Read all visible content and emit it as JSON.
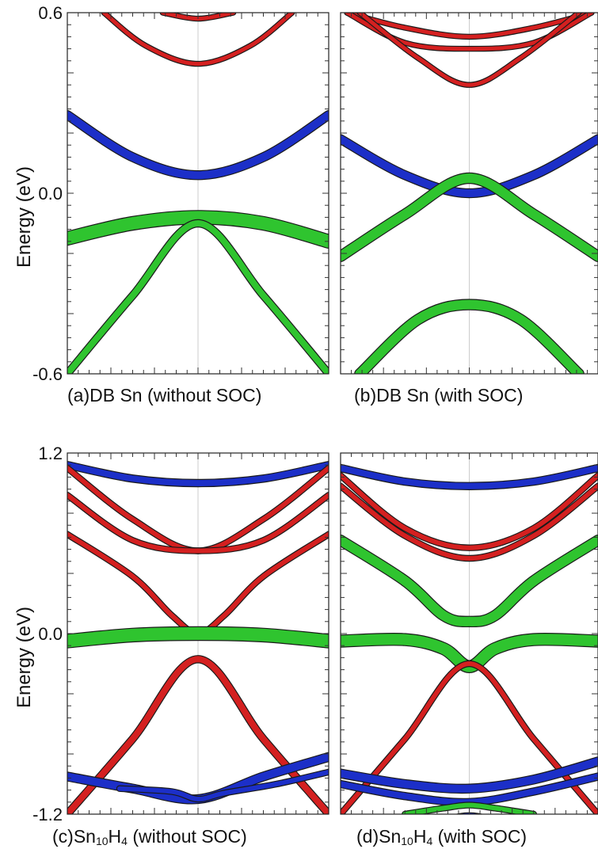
{
  "figure": {
    "panel_captions": [
      {
        "prefix": "(a)DB Sn ",
        "suffix": "(without SOC)"
      },
      {
        "prefix": "(b)DB Sn ",
        "suffix": "(with SOC)"
      },
      {
        "prefix": "(c)Sn",
        "sub1": "10",
        "mid": "H",
        "sub2": "4",
        "suffix": " (without SOC)"
      },
      {
        "prefix": "(d)Sn",
        "sub1": "10",
        "mid": "H",
        "sub2": "4",
        "suffix": " (with SOC)"
      }
    ]
  },
  "colors": {
    "red": "#d42020",
    "blue": "#1c2fc8",
    "green": "#2fc42f",
    "outline": "#1a1a1a"
  },
  "chart_data": [
    {
      "type": "line",
      "caption": "(a)DB Sn (without SOC)",
      "ylabel": "Energy (eV)",
      "xlim": [
        -1,
        1
      ],
      "ylim": [
        -0.6,
        0.6
      ],
      "yticks": [
        "0.6",
        "0.0",
        "-0.6"
      ],
      "ytick_values": [
        0.6,
        0.0,
        -0.6
      ],
      "series": [
        {
          "color": "red",
          "width": 5,
          "x": [
            -0.27,
            0,
            0.27
          ],
          "y": [
            0.6,
            0.58,
            0.6
          ]
        },
        {
          "color": "red",
          "width": 5,
          "x": [
            -0.72,
            -0.4,
            0,
            0.4,
            0.72
          ],
          "y": [
            0.6,
            0.49,
            0.43,
            0.49,
            0.6
          ]
        },
        {
          "color": "blue",
          "width": 10,
          "x": [
            -1,
            -0.5,
            0,
            0.5,
            1
          ],
          "y": [
            0.26,
            0.12,
            0.06,
            0.12,
            0.26
          ]
        },
        {
          "color": "green",
          "width": 16,
          "x": [
            -1,
            -0.5,
            0,
            0.5,
            1
          ],
          "y": [
            -0.15,
            -0.1,
            -0.08,
            -0.1,
            -0.16
          ]
        },
        {
          "color": "green",
          "width": 8,
          "x": [
            -1,
            -0.5,
            0,
            0.5,
            1
          ],
          "y": [
            -0.6,
            -0.34,
            -0.1,
            -0.34,
            -0.6
          ]
        }
      ]
    },
    {
      "type": "line",
      "caption": "(b)DB Sn (with SOC)",
      "xlim": [
        -1,
        1
      ],
      "ylim": [
        -0.6,
        0.6
      ],
      "series": [
        {
          "color": "red",
          "width": 5,
          "x": [
            -0.95,
            -0.5,
            0,
            0.5,
            0.95
          ],
          "y": [
            0.6,
            0.55,
            0.52,
            0.55,
            0.6
          ]
        },
        {
          "color": "red",
          "width": 5,
          "x": [
            -0.95,
            -0.5,
            0,
            0.5,
            0.95
          ],
          "y": [
            0.6,
            0.5,
            0.48,
            0.5,
            0.6
          ]
        },
        {
          "color": "red",
          "width": 5,
          "x": [
            -0.85,
            -0.4,
            0,
            0.4,
            0.85
          ],
          "y": [
            0.6,
            0.45,
            0.36,
            0.45,
            0.6
          ]
        },
        {
          "color": "blue",
          "width": 10,
          "x": [
            -1,
            -0.5,
            0,
            0.5,
            1
          ],
          "y": [
            0.18,
            0.06,
            0.0,
            0.06,
            0.18
          ]
        },
        {
          "color": "green",
          "width": 12,
          "x": [
            -1,
            -0.5,
            0,
            0.5,
            1
          ],
          "y": [
            -0.21,
            -0.07,
            0.05,
            -0.07,
            -0.21
          ]
        },
        {
          "color": "green",
          "width": 12,
          "x": [
            -0.85,
            -0.4,
            0,
            0.4,
            0.85
          ],
          "y": [
            -0.6,
            -0.42,
            -0.37,
            -0.42,
            -0.6
          ]
        }
      ]
    },
    {
      "type": "line",
      "caption": "(c)Sn10H4 (without SOC)",
      "ylabel": "Energy (eV)",
      "xlim": [
        -1,
        1
      ],
      "ylim": [
        -1.2,
        1.2
      ],
      "yticks": [
        "1.2",
        "0.0",
        "-1.2"
      ],
      "ytick_values": [
        1.2,
        0.0,
        -1.2
      ],
      "series": [
        {
          "color": "blue",
          "width": 8,
          "x": [
            -1,
            -0.5,
            0,
            0.5,
            1
          ],
          "y": [
            1.12,
            1.03,
            1.0,
            1.03,
            1.12
          ]
        },
        {
          "color": "red",
          "width": 6,
          "x": [
            -1,
            -0.5,
            0,
            0.5,
            1
          ],
          "y": [
            1.1,
            0.76,
            0.55,
            0.76,
            1.1
          ]
        },
        {
          "color": "red",
          "width": 6,
          "x": [
            -1,
            -0.5,
            0,
            0.5,
            1
          ],
          "y": [
            0.92,
            0.62,
            0.55,
            0.62,
            0.92
          ]
        },
        {
          "color": "red",
          "width": 6,
          "x": [
            -1,
            -0.5,
            -0.2,
            0,
            0.2,
            0.5,
            1
          ],
          "y": [
            0.66,
            0.38,
            0.12,
            0.0,
            0.12,
            0.38,
            0.66
          ]
        },
        {
          "color": "green",
          "width": 16,
          "x": [
            -1,
            -0.5,
            0,
            0.5,
            1
          ],
          "y": [
            -0.05,
            -0.01,
            0.0,
            -0.01,
            -0.05
          ]
        },
        {
          "color": "red",
          "width": 8,
          "x": [
            -1,
            -0.5,
            0,
            0.5,
            1
          ],
          "y": [
            -1.2,
            -0.7,
            -0.17,
            -0.7,
            -1.2
          ]
        },
        {
          "color": "blue",
          "width": 10,
          "x": [
            -1,
            -0.5,
            0,
            0.5,
            1
          ],
          "y": [
            -0.95,
            -1.03,
            -1.1,
            -0.95,
            -0.82
          ]
        },
        {
          "color": "blue",
          "width": 6,
          "x": [
            -0.6,
            -0.2,
            0,
            0.2,
            0.6,
            1
          ],
          "y": [
            -1.03,
            -1.05,
            -1.1,
            -1.06,
            -1.0,
            -0.92
          ]
        },
        {
          "color": "blue",
          "width": 10,
          "x": [
            -0.45,
            -0.2,
            0,
            0.2,
            0.45
          ],
          "y": [
            -1.3,
            -1.27,
            -1.25,
            -1.27,
            -1.3
          ]
        }
      ]
    },
    {
      "type": "line",
      "caption": "(d)Sn10H4 (with SOC)",
      "xlim": [
        -1,
        1
      ],
      "ylim": [
        -1.2,
        1.2
      ],
      "series": [
        {
          "color": "blue",
          "width": 8,
          "x": [
            -1,
            -0.5,
            0,
            0.5,
            1
          ],
          "y": [
            1.1,
            1.01,
            0.98,
            1.01,
            1.1
          ]
        },
        {
          "color": "red",
          "width": 6,
          "x": [
            -1,
            -0.5,
            0,
            0.5,
            1
          ],
          "y": [
            1.05,
            0.7,
            0.57,
            0.7,
            1.05
          ]
        },
        {
          "color": "red",
          "width": 6,
          "x": [
            -1,
            -0.5,
            0,
            0.5,
            1
          ],
          "y": [
            0.98,
            0.65,
            0.5,
            0.65,
            0.98
          ]
        },
        {
          "color": "green",
          "width": 12,
          "x": [
            -1,
            -0.5,
            -0.2,
            0,
            0.2,
            0.5,
            1
          ],
          "y": [
            0.62,
            0.35,
            0.12,
            0.08,
            0.12,
            0.35,
            0.62
          ]
        },
        {
          "color": "green",
          "width": 14,
          "x": [
            -1,
            -0.5,
            -0.2,
            0,
            0.2,
            0.5,
            1
          ],
          "y": [
            -0.05,
            -0.04,
            -0.1,
            -0.22,
            -0.1,
            -0.04,
            -0.05
          ]
        },
        {
          "color": "red",
          "width": 6,
          "x": [
            -1,
            -0.5,
            0,
            0.5,
            1
          ],
          "y": [
            -1.2,
            -0.7,
            -0.2,
            -0.7,
            -1.2
          ]
        },
        {
          "color": "blue",
          "width": 10,
          "x": [
            -1,
            -0.5,
            0,
            0.5,
            1
          ],
          "y": [
            -0.93,
            -1.0,
            -1.03,
            -0.97,
            -0.85
          ]
        },
        {
          "color": "blue",
          "width": 8,
          "x": [
            -1,
            -0.5,
            0,
            0.5,
            1
          ],
          "y": [
            -1.0,
            -1.08,
            -1.12,
            -1.05,
            -0.95
          ]
        },
        {
          "color": "green",
          "width": 6,
          "x": [
            -0.5,
            -0.2,
            0,
            0.2,
            0.5
          ],
          "y": [
            -1.2,
            -1.16,
            -1.14,
            -1.16,
            -1.2
          ]
        },
        {
          "color": "blue",
          "width": 10,
          "x": [
            -0.45,
            -0.2,
            0,
            0.2,
            0.45
          ],
          "y": [
            -1.3,
            -1.25,
            -1.22,
            -1.25,
            -1.3
          ]
        }
      ]
    }
  ]
}
